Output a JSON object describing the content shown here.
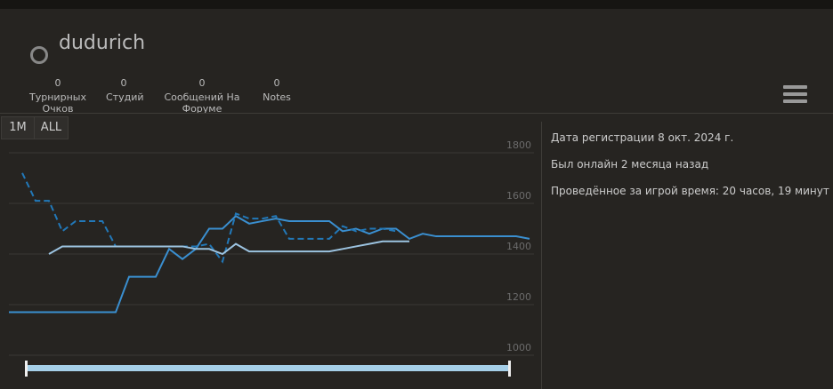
{
  "header": {
    "username": "dudurich"
  },
  "stats": [
    {
      "value": "0",
      "label": "Турнирных Очков"
    },
    {
      "value": "0",
      "label": "Студий"
    },
    {
      "value": "0",
      "label": "Сообщений На Форуме"
    },
    {
      "value": "0",
      "label": "Notes"
    }
  ],
  "range_buttons": [
    "1M",
    "ALL"
  ],
  "info": [
    "Дата регистрации 8 окт. 2024 г.",
    "Был онлайн 2 месяца назад",
    "Проведённое за игрой время: 20 часов, 19 минут"
  ],
  "chart_data": {
    "type": "line",
    "categories": [
      null,
      null,
      null,
      null,
      null,
      null,
      null,
      null,
      null,
      null,
      null,
      null,
      null,
      null,
      null,
      null,
      null,
      null,
      null,
      null,
      null,
      null,
      null,
      null,
      null,
      null,
      null,
      null,
      null,
      null,
      null,
      null,
      null,
      null,
      null,
      null,
      null,
      null,
      null,
      null
    ],
    "ylim": [
      1000,
      1800
    ],
    "yticks": [
      1000,
      1200,
      1400,
      1600,
      1800
    ],
    "grid": true,
    "series": [
      {
        "color": "#3a8fd0",
        "dashed": false,
        "values": [
          1170,
          1170,
          1170,
          1170,
          1170,
          1170,
          1170,
          1170,
          1170,
          1310,
          1310,
          1310,
          1420,
          1380,
          1420,
          1500,
          1500,
          1550,
          1520,
          1530,
          1540,
          1530,
          1530,
          1530,
          1530,
          1490,
          1500,
          1480,
          1500,
          1500,
          1460,
          1480,
          1470,
          1470,
          1470,
          1470,
          1470,
          1470,
          1470,
          1460
        ]
      },
      {
        "color": "#2278b8",
        "dashed": true,
        "values": [
          null,
          1720,
          1610,
          1610,
          1490,
          1530,
          1530,
          1530,
          1430,
          1430,
          1430,
          1430,
          1430,
          1430,
          1430,
          1440,
          1370,
          1560,
          1540,
          1540,
          1550,
          1460,
          1460,
          1460,
          1460,
          1510,
          1490,
          1500,
          1500,
          1490,
          null,
          null,
          null,
          null,
          null,
          null,
          null,
          null,
          null,
          null
        ]
      },
      {
        "color": "#9cc3e0",
        "dashed": false,
        "values": [
          null,
          null,
          null,
          1400,
          1430,
          1430,
          1430,
          1430,
          1430,
          1430,
          1430,
          1430,
          1430,
          1430,
          1420,
          1420,
          1400,
          1440,
          1410,
          1410,
          1410,
          1410,
          1410,
          1410,
          1410,
          1420,
          1430,
          1440,
          1450,
          1450,
          1450,
          null,
          null,
          null,
          null,
          null,
          null,
          null,
          null,
          null
        ]
      }
    ]
  }
}
